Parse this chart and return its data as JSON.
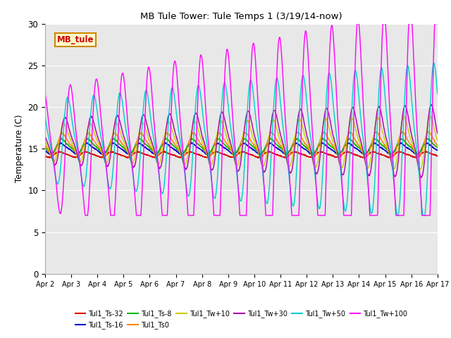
{
  "title": "MB Tule Tower: Tule Temps 1 (3/19/14-now)",
  "ylabel": "Temperature (C)",
  "xlim": [
    0,
    15
  ],
  "ylim": [
    0,
    30
  ],
  "yticks": [
    0,
    5,
    10,
    15,
    20,
    25,
    30
  ],
  "xtick_labels": [
    "Apr 2",
    "Apr 3",
    "Apr 4",
    "Apr 5",
    "Apr 6",
    "Apr 7",
    "Apr 8",
    "Apr 9",
    "Apr 10",
    "Apr 11",
    "Apr 12",
    "Apr 13",
    "Apr 14",
    "Apr 15",
    "Apr 16",
    "Apr 17"
  ],
  "bg_color": "#e8e8e8",
  "series": [
    {
      "label": "Tul1_Ts-32",
      "color": "#dd0000",
      "lw": 1.0
    },
    {
      "label": "Tul1_Ts-16",
      "color": "#0000cc",
      "lw": 1.0
    },
    {
      "label": "Tul1_Ts-8",
      "color": "#00bb00",
      "lw": 1.0
    },
    {
      "label": "Tul1_Ts0",
      "color": "#ff8800",
      "lw": 1.0
    },
    {
      "label": "Tul1_Tw+10",
      "color": "#cccc00",
      "lw": 1.0
    },
    {
      "label": "Tul1_Tw+30",
      "color": "#aa00aa",
      "lw": 1.0
    },
    {
      "label": "Tul1_Tw+50",
      "color": "#00cccc",
      "lw": 1.0
    },
    {
      "label": "Tul1_Tw+100",
      "color": "#ff00ff",
      "lw": 1.0
    }
  ],
  "legend_box": {
    "label": "MB_tule",
    "facecolor": "#ffffcc",
    "edgecolor": "#cc8800",
    "textcolor": "#cc0000"
  },
  "num_days": 15,
  "bases": [
    14.3,
    15.0,
    15.3,
    15.5,
    15.7,
    15.9,
    15.9,
    14.8
  ],
  "amps": [
    0.3,
    0.6,
    0.8,
    1.2,
    2.0,
    2.5,
    4.5,
    6.5
  ],
  "phases": [
    0.0,
    0.05,
    0.08,
    0.12,
    0.18,
    0.22,
    0.32,
    0.42
  ],
  "amp_growth": [
    0.0,
    0.0,
    0.0,
    0.01,
    0.03,
    0.04,
    0.06,
    0.1
  ]
}
